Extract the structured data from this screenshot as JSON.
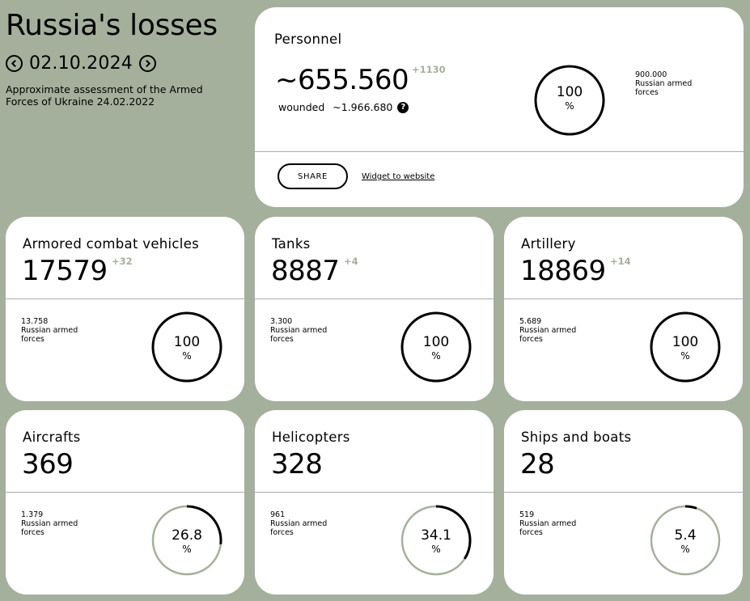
{
  "header": {
    "title": "Russia's losses",
    "date": "02.10.2024",
    "subtitle": "Approximate assessment of the Armed Forces of Ukraine 24.02.2022"
  },
  "personnel": {
    "title": "Personnel",
    "value": "~655.560",
    "delta": "+1130",
    "wounded_label": "wounded",
    "wounded_value": "~1.966.680",
    "help_glyph": "?",
    "ref_value": "900.000",
    "ref_label": "Russian armed forces",
    "percent": "100",
    "percent_unit": "%",
    "percent_fraction": 1.0,
    "share_label": "SHARE",
    "widget_label": "Widget to website"
  },
  "cards": [
    {
      "title": "Armored combat vehicles",
      "value": "17579",
      "delta": "+32",
      "ref_value": "13.758",
      "ref_label": "Russian armed forces",
      "percent": "100",
      "percent_unit": "%",
      "fraction": 1.0
    },
    {
      "title": "Tanks",
      "value": "8887",
      "delta": "+4",
      "ref_value": "3.300",
      "ref_label": "Russian armed forces",
      "percent": "100",
      "percent_unit": "%",
      "fraction": 1.0
    },
    {
      "title": "Artillery",
      "value": "18869",
      "delta": "+14",
      "ref_value": "5.689",
      "ref_label": "Russian armed forces",
      "percent": "100",
      "percent_unit": "%",
      "fraction": 1.0
    },
    {
      "title": "Aircrafts",
      "value": "369",
      "delta": "",
      "ref_value": "1.379",
      "ref_label": "Russian armed forces",
      "percent": "26.8",
      "percent_unit": "%",
      "fraction": 0.268
    },
    {
      "title": "Helicopters",
      "value": "328",
      "delta": "",
      "ref_value": "961",
      "ref_label": "Russian armed forces",
      "percent": "34.1",
      "percent_unit": "%",
      "fraction": 0.341
    },
    {
      "title": "Ships and boats",
      "value": "28",
      "delta": "",
      "ref_value": "519",
      "ref_label": "Russian armed forces",
      "percent": "5.4",
      "percent_unit": "%",
      "fraction": 0.054
    }
  ],
  "colors": {
    "background": "#a4b09c",
    "card": "#ffffff",
    "ring_track": "#a4b09c",
    "ring_fill": "#000000",
    "delta": "#a4b09c"
  }
}
